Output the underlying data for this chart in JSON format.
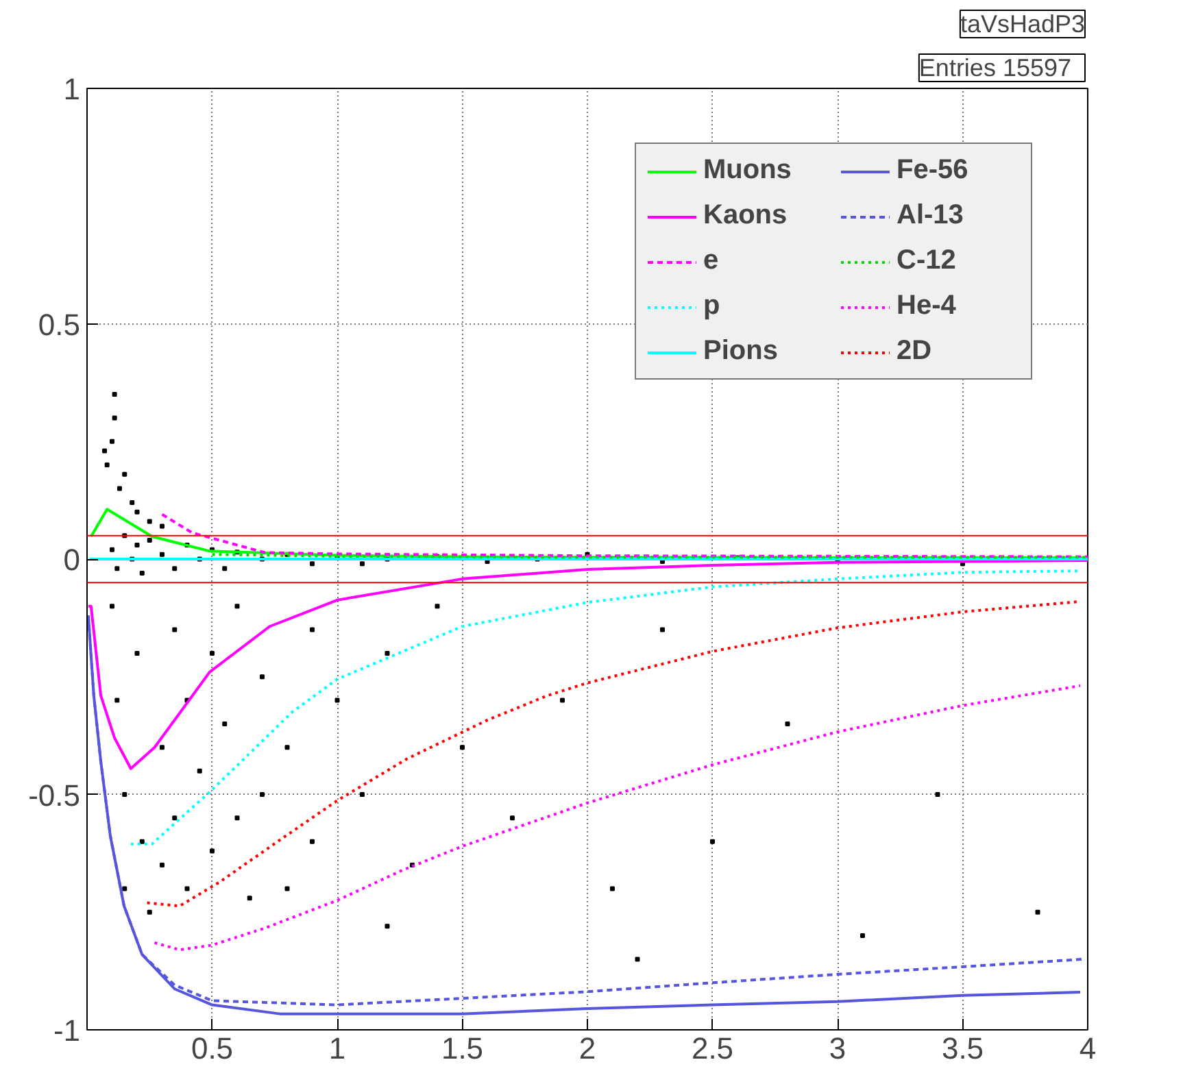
{
  "chart_data": {
    "type": "line",
    "xlim": [
      0,
      4
    ],
    "ylim": [
      -1,
      1
    ],
    "xticks": [
      0.5,
      1,
      1.5,
      2,
      2.5,
      3,
      3.5,
      4
    ],
    "yticks": [
      -1,
      -0.5,
      0,
      0.5,
      1
    ],
    "grid": true,
    "legend": "top right",
    "annotations": [
      "taVsHadP3",
      "Entries   15597"
    ],
    "ref_lines": [
      {
        "axis": "y",
        "value": 0.05,
        "color": "#ff0000"
      },
      {
        "axis": "y",
        "value": -0.05,
        "color": "#ff0000"
      }
    ],
    "series": [
      {
        "type": "scatter",
        "color": "#000000",
        "marker": "square",
        "x": [
          0.1,
          0.12,
          0.15,
          0.18,
          0.2,
          0.22,
          0.25,
          0.3,
          0.35,
          0.4,
          0.45,
          0.5,
          0.55,
          0.6,
          0.7,
          0.8,
          0.9,
          1.0,
          1.1,
          1.2,
          1.4,
          1.6,
          1.8,
          2.0,
          2.3,
          2.6,
          3.0,
          3.5,
          0.08,
          0.1,
          0.11,
          0.13,
          0.15,
          0.18,
          0.2,
          0.25,
          0.3,
          0.11,
          0.07,
          0.1,
          0.12,
          0.15,
          0.15,
          0.2,
          0.22,
          0.25,
          0.3,
          0.3,
          0.35,
          0.35,
          0.4,
          0.4,
          0.45,
          0.5,
          0.5,
          0.55,
          0.6,
          0.6,
          0.65,
          0.7,
          0.7,
          0.8,
          0.8,
          0.9,
          0.9,
          1.0,
          1.1,
          1.2,
          1.3,
          1.4,
          1.5,
          1.7,
          1.9,
          2.1,
          2.3,
          2.5,
          2.8,
          3.1,
          3.4,
          3.8,
          2.2,
          1.2
        ],
        "values": [
          0.02,
          -0.02,
          0.05,
          0.0,
          0.03,
          -0.03,
          0.04,
          0.01,
          -0.02,
          0.03,
          0.0,
          0.02,
          -0.02,
          0.015,
          0.0,
          0.01,
          -0.01,
          0.005,
          -0.01,
          0.0,
          0.005,
          -0.005,
          0.0,
          0.01,
          -0.005,
          0.003,
          0.0,
          -0.01,
          0.2,
          0.25,
          0.3,
          0.15,
          0.18,
          0.12,
          0.1,
          0.08,
          0.07,
          0.35,
          0.23,
          -0.1,
          -0.3,
          -0.5,
          -0.7,
          -0.2,
          -0.6,
          -0.75,
          -0.4,
          -0.65,
          -0.15,
          -0.55,
          -0.3,
          -0.7,
          -0.45,
          -0.2,
          -0.62,
          -0.35,
          -0.1,
          -0.55,
          -0.72,
          -0.25,
          -0.5,
          -0.4,
          -0.7,
          -0.15,
          -0.6,
          -0.3,
          -0.5,
          -0.2,
          -0.65,
          -0.1,
          -0.4,
          -0.55,
          -0.3,
          -0.7,
          -0.15,
          -0.6,
          -0.35,
          -0.8,
          -0.5,
          -0.75,
          -0.85,
          -0.78
        ]
      },
      {
        "name": "Muons",
        "color": "#00ff00",
        "line_style": "solid",
        "x": [
          0.016,
          0.08,
          0.26,
          0.49,
          1.0,
          1.5,
          2.0,
          3.0,
          4.0
        ],
        "values": [
          0.048,
          0.106,
          0.048,
          0.017,
          0.008,
          0.005,
          0.004,
          0.003,
          0.003
        ]
      },
      {
        "name": "Kaons",
        "color": "#ff00ff",
        "line_style": "solid",
        "x": [
          0.005,
          0.016,
          0.055,
          0.11,
          0.175,
          0.27,
          0.49,
          0.73,
          1.0,
          1.5,
          2.0,
          2.5,
          3.0,
          4.0
        ],
        "values": [
          -0.1,
          -0.1,
          -0.29,
          -0.38,
          -0.445,
          -0.4,
          -0.24,
          -0.143,
          -0.087,
          -0.042,
          -0.022,
          -0.013,
          -0.007,
          -0.003
        ]
      },
      {
        "name": "e",
        "color": "#ff00ff",
        "line_style": "dashed",
        "x": [
          0.3,
          0.42,
          0.71,
          1.0,
          2.0,
          3.0,
          4.0
        ],
        "values": [
          0.095,
          0.056,
          0.014,
          0.011,
          0.007,
          0.006,
          0.005
        ]
      },
      {
        "name": "p",
        "color": "#00ffff",
        "line_style": "dotted",
        "x": [
          0.175,
          0.26,
          0.5,
          0.82,
          1.0,
          1.5,
          2.0,
          2.5,
          3.0,
          3.5,
          3.97
        ],
        "values": [
          -0.605,
          -0.605,
          -0.49,
          -0.325,
          -0.255,
          -0.143,
          -0.092,
          -0.059,
          -0.042,
          -0.028,
          -0.025
        ]
      },
      {
        "name": "Pions",
        "color": "#00ffff",
        "line_style": "solid",
        "x": [
          0.01,
          4.0
        ],
        "values": [
          0.0,
          0.0
        ]
      },
      {
        "name": "Fe-56",
        "color": "#5555dd",
        "line_style": "solid",
        "x": [
          0.005,
          0.027,
          0.055,
          0.093,
          0.148,
          0.22,
          0.35,
          0.5,
          0.77,
          1.5,
          2.0,
          2.5,
          3.0,
          3.5,
          3.97
        ],
        "values": [
          -0.12,
          -0.29,
          -0.43,
          -0.588,
          -0.737,
          -0.84,
          -0.913,
          -0.947,
          -0.966,
          -0.966,
          -0.955,
          -0.947,
          -0.94,
          -0.927,
          -0.92
        ]
      },
      {
        "name": "Al-13",
        "color": "#5555dd",
        "line_style": "dashed",
        "x": [
          0.005,
          0.027,
          0.055,
          0.093,
          0.148,
          0.22,
          0.35,
          0.5,
          1.0,
          1.5,
          2.0,
          2.5,
          3.0,
          3.5,
          3.98
        ],
        "values": [
          -0.12,
          -0.29,
          -0.43,
          -0.588,
          -0.737,
          -0.84,
          -0.905,
          -0.938,
          -0.947,
          -0.933,
          -0.919,
          -0.9,
          -0.882,
          -0.866,
          -0.85
        ]
      },
      {
        "name": "C-12",
        "color": "#00dd00",
        "line_style": "dotted",
        "x": [
          0.5,
          1.0,
          2.0,
          3.0,
          4.0
        ],
        "values": [
          0.01,
          0.006,
          0.004,
          0.004,
          0.004
        ]
      },
      {
        "name": "He-4",
        "color": "#ff00ff",
        "line_style": "dotted",
        "x": [
          0.27,
          0.37,
          0.5,
          0.71,
          1.0,
          1.26,
          1.5,
          2.0,
          2.5,
          3.0,
          3.5,
          3.97
        ],
        "values": [
          -0.815,
          -0.83,
          -0.82,
          -0.784,
          -0.725,
          -0.661,
          -0.61,
          -0.518,
          -0.437,
          -0.367,
          -0.311,
          -0.269
        ]
      },
      {
        "name": "2D",
        "color": "#ff0000",
        "line_style": "dotted",
        "x": [
          0.24,
          0.37,
          0.53,
          0.77,
          1.0,
          1.28,
          1.6,
          1.84,
          2.0,
          2.5,
          3.0,
          3.5,
          3.97
        ],
        "values": [
          -0.73,
          -0.737,
          -0.686,
          -0.597,
          -0.513,
          -0.424,
          -0.342,
          -0.29,
          -0.263,
          -0.196,
          -0.146,
          -0.112,
          -0.09
        ]
      }
    ]
  }
}
